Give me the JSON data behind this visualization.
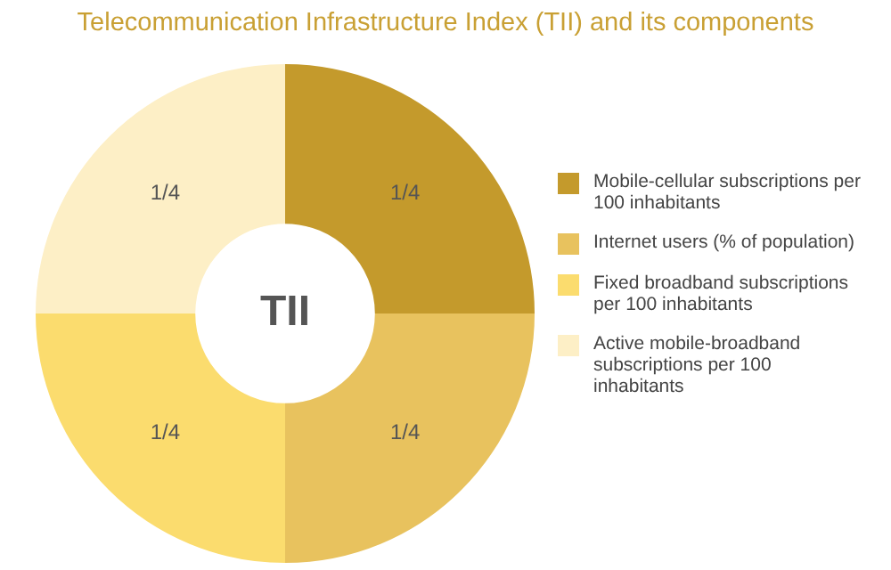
{
  "chart_data": {
    "type": "donut",
    "title": "Telecommunication Infrastructure Index (TII) and its components",
    "categories": [
      "Mobile-cellular subscriptions per 100 inhabitants",
      "Internet users (% of population)",
      "Fixed broadband subscriptions per 100 inhabitants",
      "Active mobile-broadband subscriptions per 100 inhabitants"
    ],
    "values": [
      0.25,
      0.25,
      0.25,
      0.25
    ],
    "value_labels": [
      "1/4",
      "1/4",
      "1/4",
      "1/4"
    ],
    "colors": [
      "#c49a2c",
      "#e8c25e",
      "#fbdc6e",
      "#fdefc6"
    ],
    "annotations": [
      "TII"
    ],
    "legend": "right"
  }
}
